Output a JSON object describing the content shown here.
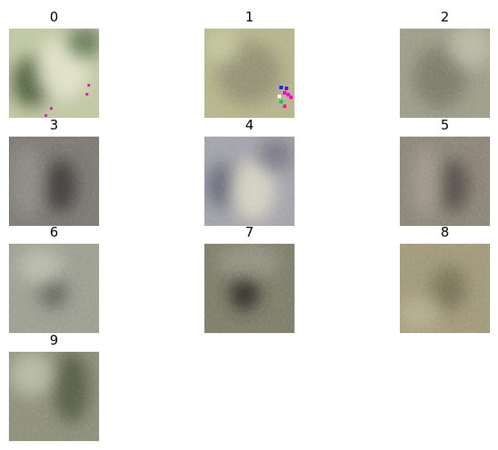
{
  "panels": [
    {
      "title": "0"
    },
    {
      "title": "1"
    },
    {
      "title": "2"
    },
    {
      "title": "3"
    },
    {
      "title": "4"
    },
    {
      "title": "5"
    },
    {
      "title": "6"
    },
    {
      "title": "7"
    },
    {
      "title": "8"
    },
    {
      "title": "9"
    }
  ]
}
